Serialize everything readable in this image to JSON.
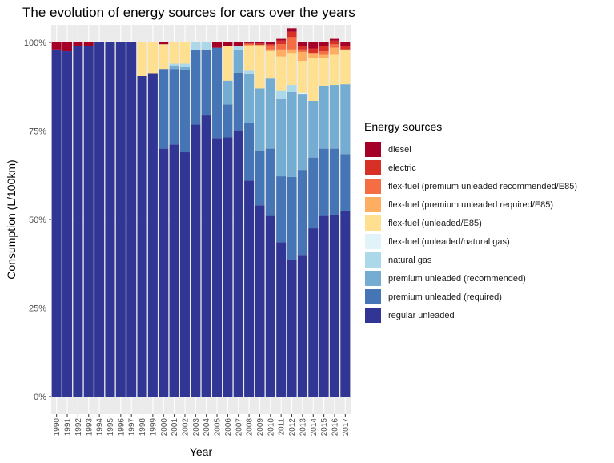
{
  "chart_data": {
    "type": "bar",
    "stacked": true,
    "title": "The evolution of energy sources for cars over the years",
    "xlabel": "Year",
    "ylabel": "Consumption (L/100km)",
    "ylim": [
      0,
      1
    ],
    "y_ticks": [
      "0%",
      "25%",
      "50%",
      "75%",
      "100%"
    ],
    "legend_title": "Energy sources",
    "legend_position": "right",
    "grid": true,
    "categories": [
      "1990",
      "1991",
      "1992",
      "1993",
      "1994",
      "1995",
      "1996",
      "1997",
      "1998",
      "1999",
      "2000",
      "2001",
      "2002",
      "2003",
      "2004",
      "2005",
      "2006",
      "2007",
      "2008",
      "2009",
      "2010",
      "2011",
      "2012",
      "2013",
      "2014",
      "2015",
      "2016",
      "2017"
    ],
    "series": [
      {
        "name": "regular unleaded",
        "color": "#313695",
        "values": [
          0.98,
          0.975,
          0.99,
          0.99,
          1.0,
          1.0,
          1.0,
          1.0,
          0.905,
          0.913,
          0.7,
          0.712,
          0.69,
          0.768,
          0.794,
          0.73,
          0.732,
          0.752,
          0.61,
          0.54,
          0.51,
          0.436,
          0.385,
          0.4,
          0.475,
          0.51,
          0.513,
          0.525
        ]
      },
      {
        "name": "premium unleaded (required)",
        "color": "#4575b4",
        "values": [
          0,
          0,
          0,
          0,
          0,
          0,
          0,
          0,
          0,
          0,
          0.225,
          0.213,
          0.233,
          0.211,
          0.186,
          0.255,
          0.093,
          0.162,
          0.162,
          0.153,
          0.19,
          0.186,
          0.235,
          0.24,
          0.2,
          0.19,
          0.187,
          0.16
        ]
      },
      {
        "name": "premium unleaded (recommended)",
        "color": "#74add1",
        "values": [
          0,
          0,
          0,
          0,
          0,
          0,
          0,
          0,
          0,
          0,
          0,
          0.01,
          0.007,
          0,
          0,
          0,
          0.067,
          0.066,
          0.14,
          0.177,
          0.2,
          0.22,
          0.24,
          0.215,
          0.16,
          0.178,
          0.18,
          0.197
        ]
      },
      {
        "name": "natural gas",
        "color": "#abd9e9",
        "values": [
          0,
          0,
          0,
          0,
          0,
          0,
          0,
          0,
          0,
          0,
          0,
          0.005,
          0.01,
          0.021,
          0.02,
          0,
          0,
          0.01,
          0.008,
          0,
          0,
          0.023,
          0.02,
          0,
          0,
          0,
          0,
          0
        ]
      },
      {
        "name": "flex-fuel (unleaded/natural gas)",
        "color": "#e0f3f8",
        "values": [
          0,
          0,
          0,
          0,
          0,
          0,
          0,
          0,
          0,
          0,
          0,
          0,
          0,
          0,
          0,
          0,
          0,
          0,
          0,
          0,
          0,
          0,
          0,
          0.003,
          0,
          0,
          0,
          0
        ]
      },
      {
        "name": "flex-fuel (unleaded/E85)",
        "color": "#fee090",
        "values": [
          0,
          0,
          0,
          0,
          0,
          0,
          0,
          0,
          0.095,
          0.087,
          0.07,
          0.06,
          0.06,
          0,
          0,
          0,
          0.098,
          0.0,
          0.072,
          0.12,
          0.075,
          0.095,
          0.09,
          0.09,
          0.12,
          0.077,
          0.085,
          0.098
        ]
      },
      {
        "name": "flex-fuel (premium unleaded required/E85)",
        "color": "#fdae61",
        "values": [
          0,
          0,
          0,
          0,
          0,
          0,
          0,
          0,
          0,
          0,
          0,
          0,
          0,
          0,
          0,
          0,
          0,
          0,
          0,
          0.003,
          0.005,
          0.02,
          0.01,
          0.025,
          0.015,
          0.01,
          0.02,
          0
        ]
      },
      {
        "name": "flex-fuel (premium unleaded recommended/E85)",
        "color": "#f46d43",
        "values": [
          0,
          0,
          0,
          0,
          0,
          0,
          0,
          0,
          0,
          0,
          0,
          0,
          0,
          0,
          0,
          0,
          0,
          0,
          0.004,
          0,
          0.012,
          0.015,
          0.035,
          0.007,
          0,
          0.01,
          0.01,
          0
        ]
      },
      {
        "name": "electric",
        "color": "#d73027",
        "values": [
          0,
          0,
          0,
          0,
          0,
          0,
          0,
          0,
          0,
          0,
          0,
          0,
          0,
          0,
          0,
          0,
          0,
          0,
          0.002,
          0.004,
          0.003,
          0.01,
          0.015,
          0.01,
          0.013,
          0.015,
          0.01,
          0.01
        ]
      },
      {
        "name": "diesel",
        "color": "#a50026",
        "values": [
          0.02,
          0.025,
          0.01,
          0.01,
          0,
          0,
          0,
          0,
          0,
          0,
          0.005,
          0,
          0,
          0,
          0,
          0.015,
          0.01,
          0.01,
          0.002,
          0.003,
          0.005,
          0.005,
          0.01,
          0.01,
          0.017,
          0.01,
          0.005,
          0.01
        ]
      }
    ]
  }
}
